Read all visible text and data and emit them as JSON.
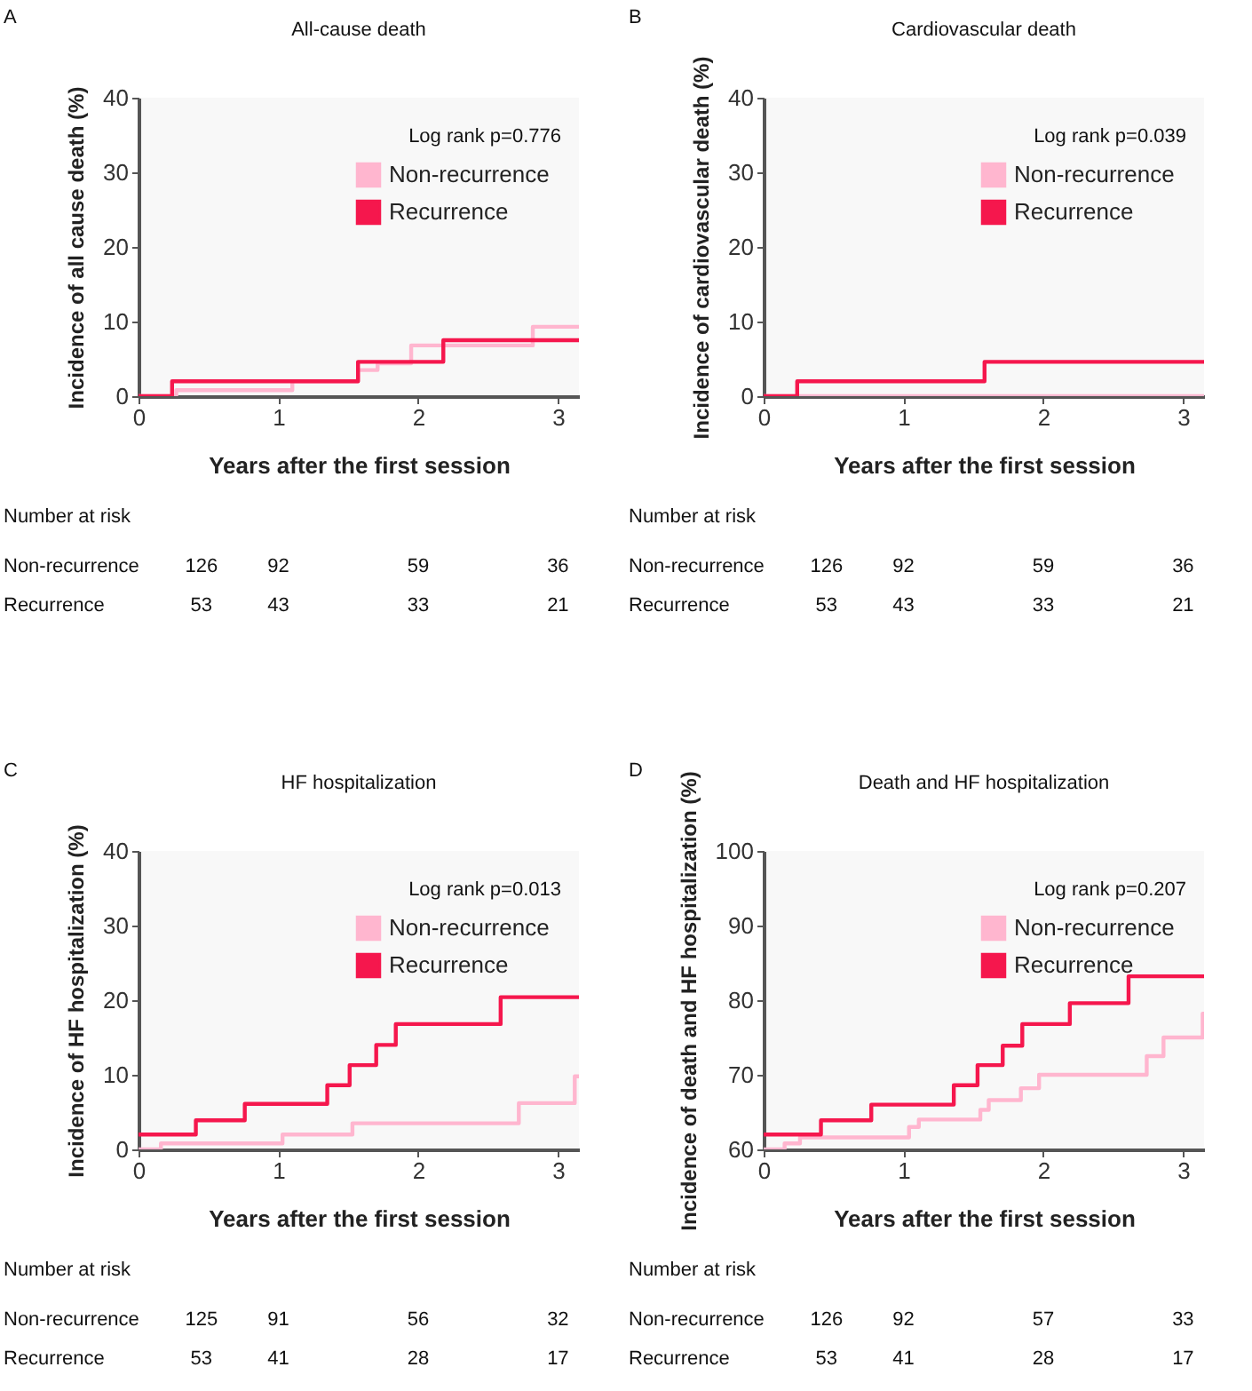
{
  "chart_data": [
    {
      "type": "step",
      "title": "All-cause death",
      "xlabel": "Years after the first session",
      "ylabel": "Incidence of all cause death (%)",
      "xlim": [
        0,
        3.15
      ],
      "ylim": [
        0,
        40
      ],
      "xticks": [
        0,
        1,
        2,
        3
      ],
      "yticks": [
        0,
        10,
        20,
        30,
        40
      ],
      "grid": false,
      "legend": "top right",
      "marker": "none",
      "line_style": "solid",
      "series": [
        {
          "name": "Non-recurrence",
          "color": "#ffb6cf",
          "x": [
            0,
            0.27,
            1.1,
            1.57,
            1.71,
            1.95,
            2.82,
            3.15
          ],
          "values": [
            0,
            0.8,
            2.0,
            3.5,
            4.4,
            6.8,
            9.3,
            9.3
          ]
        },
        {
          "name": "Recurrence",
          "color": "#f5174d",
          "x": [
            0,
            0.24,
            1.57,
            2.18,
            3.15
          ],
          "values": [
            0,
            2.0,
            4.6,
            7.5,
            7.5
          ]
        }
      ],
      "annotations": [
        "A",
        "Log rank p=0.776",
        "Number at risk",
        "Non-recurrence",
        "126",
        "92",
        "59",
        "36",
        "Recurrence",
        "53",
        "43",
        "33",
        "21"
      ]
    },
    {
      "type": "step",
      "title": "Cardiovascular death",
      "xlabel": "Years after the first session",
      "ylabel": "Incidence of cardiovascular death (%)",
      "xlim": [
        0,
        3.15
      ],
      "ylim": [
        0,
        40
      ],
      "xticks": [
        0,
        1,
        2,
        3
      ],
      "yticks": [
        0,
        10,
        20,
        30,
        40
      ],
      "grid": false,
      "legend": "top right",
      "marker": "none",
      "line_style": "solid",
      "series": [
        {
          "name": "Non-recurrence",
          "color": "#ffb6cf",
          "x": [
            0,
            3.15
          ],
          "values": [
            0,
            0
          ]
        },
        {
          "name": "Recurrence",
          "color": "#f5174d",
          "x": [
            0,
            0.24,
            1.58,
            3.15
          ],
          "values": [
            0,
            2.0,
            4.6,
            4.6
          ]
        }
      ],
      "annotations": [
        "B",
        "Log rank p=0.039",
        "Number at risk",
        "Non-recurrence",
        "126",
        "92",
        "59",
        "36",
        "Recurrence",
        "53",
        "43",
        "33",
        "21"
      ]
    },
    {
      "type": "step",
      "title": "HF hospitalization",
      "xlabel": "Years after the first session",
      "ylabel": "Incidence of HF hospitalization (%)",
      "xlim": [
        0,
        3.15
      ],
      "ylim": [
        0,
        40
      ],
      "xticks": [
        0,
        1,
        2,
        3
      ],
      "yticks": [
        0,
        10,
        20,
        30,
        40
      ],
      "grid": false,
      "legend": "top right",
      "marker": "none",
      "line_style": "solid",
      "series": [
        {
          "name": "Non-recurrence",
          "color": "#ffb6cf",
          "x": [
            0,
            0.16,
            1.03,
            1.53,
            2.72,
            3.12,
            3.15
          ],
          "values": [
            0,
            0.8,
            2.0,
            3.5,
            6.2,
            9.8,
            9.8
          ]
        },
        {
          "name": "Recurrence",
          "color": "#f5174d",
          "x": [
            0,
            0.41,
            0.76,
            1.35,
            1.51,
            1.7,
            1.84,
            2.59,
            3.15
          ],
          "values": [
            2.0,
            3.9,
            6.1,
            8.6,
            11.3,
            14.0,
            16.8,
            20.4,
            20.4
          ]
        }
      ],
      "annotations": [
        "C",
        "Log rank p=0.013",
        "Number at risk",
        "Non-recurrence",
        "125",
        "91",
        "56",
        "32",
        "Recurrence",
        "53",
        "41",
        "28",
        "17"
      ]
    },
    {
      "type": "step",
      "title": "Death and HF hospitalization",
      "xlabel": "Years after the first session",
      "ylabel": "Incidence of death and HF hospitalization (%)",
      "xlim": [
        0,
        3.15
      ],
      "ylim": [
        60,
        100
      ],
      "xticks": [
        0,
        1,
        2,
        3
      ],
      "yticks": [
        60,
        70,
        80,
        90,
        100
      ],
      "grid": false,
      "legend": "top right",
      "marker": "none",
      "line_style": "solid",
      "series": [
        {
          "name": "Non-recurrence",
          "color": "#ffb6cf",
          "x": [
            0,
            0.15,
            0.26,
            1.04,
            1.11,
            1.55,
            1.61,
            1.84,
            1.97,
            2.74,
            2.86,
            3.14,
            3.15
          ],
          "values": [
            60,
            60.8,
            61.6,
            63.0,
            64.0,
            65.3,
            66.6,
            68.2,
            70.0,
            72.5,
            75.0,
            78.2,
            78.2
          ]
        },
        {
          "name": "Recurrence",
          "color": "#f5174d",
          "x": [
            0,
            0.41,
            0.77,
            1.36,
            1.53,
            1.71,
            1.85,
            2.19,
            2.61,
            3.15
          ],
          "values": [
            62.0,
            63.9,
            66.0,
            68.6,
            71.3,
            73.9,
            76.8,
            79.6,
            83.2,
            83.2
          ]
        }
      ],
      "annotations": [
        "D",
        "Log rank p=0.207",
        "Number at risk",
        "Non-recurrence",
        "126",
        "92",
        "57",
        "33",
        "Recurrence",
        "53",
        "41",
        "28",
        "17"
      ]
    }
  ]
}
